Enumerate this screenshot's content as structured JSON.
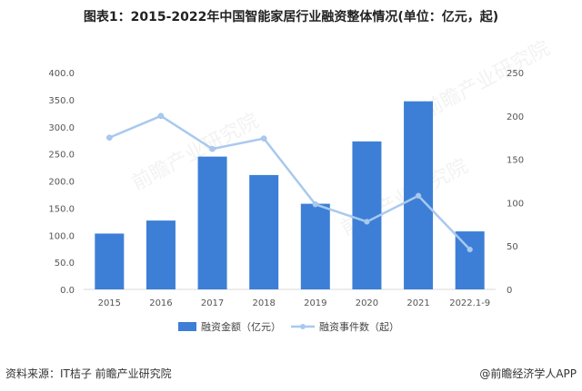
{
  "title": "图表1：2015-2022年中国智能家居行业融资整体情况(单位：亿元，起)",
  "source_note": "资料来源：IT桔子 前瞻产业研究院",
  "brand": "@前瞻经济学人APP",
  "watermark": "前瞻产业研究院",
  "colors": {
    "bar": "#3d7fd6",
    "line": "#a9c9ee",
    "axis": "#d9d9d9"
  },
  "chart_data": {
    "type": "bar+line",
    "categories": [
      "2015",
      "2016",
      "2017",
      "2018",
      "2019",
      "2020",
      "2021",
      "2022.1-9"
    ],
    "series": [
      {
        "name": "融资金额（亿元）",
        "type": "bar",
        "axis": "left",
        "values": [
          103,
          127,
          245,
          211,
          158,
          273,
          347,
          107
        ]
      },
      {
        "name": "融资事件数（起）",
        "type": "line",
        "axis": "right",
        "values": [
          175,
          200,
          162,
          174,
          98,
          78,
          108,
          46
        ]
      }
    ],
    "y_left": {
      "min": 0,
      "max": 400,
      "ticks": [
        "0.0",
        "50.0",
        "100.0",
        "150.0",
        "200.0",
        "250.0",
        "300.0",
        "350.0",
        "400.0"
      ]
    },
    "y_right": {
      "min": 0,
      "max": 250,
      "ticks": [
        "0",
        "50",
        "100",
        "150",
        "200",
        "250"
      ]
    },
    "legend_position": "bottom",
    "grid": false
  }
}
